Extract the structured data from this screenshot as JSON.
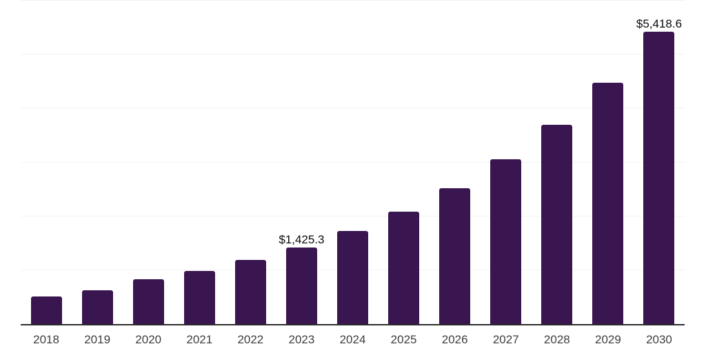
{
  "chart_data": {
    "type": "bar",
    "title": "",
    "xlabel": "",
    "ylabel": "",
    "categories": [
      "2018",
      "2019",
      "2020",
      "2021",
      "2022",
      "2023",
      "2024",
      "2025",
      "2026",
      "2027",
      "2028",
      "2029",
      "2030"
    ],
    "values": [
      510,
      627,
      838,
      990,
      1185,
      1425.3,
      1725,
      2087,
      2526,
      3056,
      3698,
      4475,
      5418.6
    ],
    "value_labels": [
      "",
      "",
      "",
      "",
      "",
      "$1,425.3",
      "",
      "",
      "",
      "",
      "",
      "",
      "$5,418.6"
    ],
    "ylim": [
      0,
      6000
    ],
    "gridline_interval": 1000,
    "grid_visible": true,
    "legend": "none",
    "style": {
      "bar_color": "#3A1650",
      "grid_color": "#F3F3F3",
      "axis_color": "#2B2B2B",
      "tick_label_color": "#3D3D3D",
      "value_label_color": "#0A0A0A",
      "background_color": "#FFFFFF"
    }
  }
}
